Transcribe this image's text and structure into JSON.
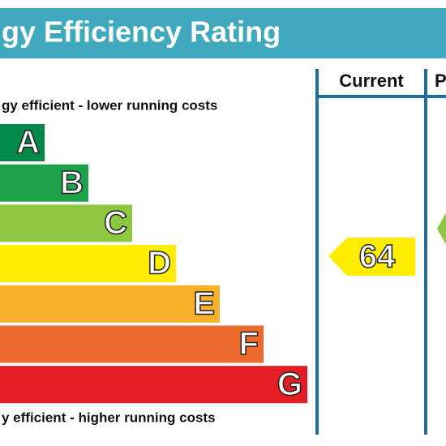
{
  "header": {
    "title": "gy Efficiency Rating"
  },
  "top_note": "gy efficient - lower running costs",
  "bottom_note": "y efficient - higher running costs",
  "columns": [
    "Current",
    "P"
  ],
  "bands": [
    {
      "letter": "A",
      "color": "#008a4a"
    },
    {
      "letter": "B",
      "color": "#1ba24a"
    },
    {
      "letter": "C",
      "color": "#8dc63f"
    },
    {
      "letter": "D",
      "color": "#ffed00"
    },
    {
      "letter": "E",
      "color": "#f6b029"
    },
    {
      "letter": "F",
      "color": "#eb6a2c"
    },
    {
      "letter": "G",
      "color": "#e31d23"
    }
  ],
  "current": {
    "value": 64,
    "color": "#ffed00"
  },
  "potential": {
    "color": "#8dc63f"
  }
}
